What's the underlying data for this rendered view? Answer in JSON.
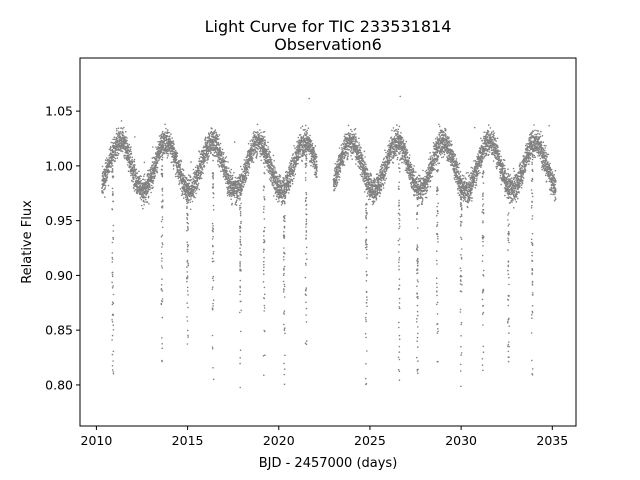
{
  "chart_data": {
    "type": "scatter",
    "title_line1": "Light Curve for TIC 233531814",
    "title_line2": "Observation6",
    "xlabel": "BJD - 2457000 (days)",
    "ylabel": "Relative Flux",
    "xlim": [
      2009.1,
      2036.3
    ],
    "ylim": [
      0.7625,
      1.0985
    ],
    "xticks": [
      2010,
      2015,
      2020,
      2025,
      2030,
      2035
    ],
    "yticks": [
      0.8,
      0.85,
      0.9,
      0.95,
      1.0,
      1.05
    ],
    "xtick_labels": [
      "2010",
      "2015",
      "2020",
      "2025",
      "2030",
      "2035"
    ],
    "ytick_labels": [
      "0.80",
      "0.85",
      "0.90",
      "0.95",
      "1.00",
      "1.05"
    ],
    "marker_color": "#808080",
    "grid": false,
    "legend": "none",
    "series": [
      {
        "segments": [
          [
            2010.3,
            2022.1
          ],
          [
            2023.0,
            2035.2
          ]
        ],
        "period_days": 2.53,
        "first_maximum_day": 2011.3,
        "modulation_amplitude": 0.022,
        "scatter": 0.012,
        "eclipse_times": [
          2010.9,
          2013.6,
          2015.0,
          2016.4,
          2017.9,
          2019.2,
          2020.3,
          2021.5,
          2024.8,
          2026.6,
          2027.6,
          2028.7,
          2030.0,
          2031.2,
          2032.6,
          2033.9
        ],
        "eclipse_minimum_flux": 0.79
      }
    ]
  }
}
